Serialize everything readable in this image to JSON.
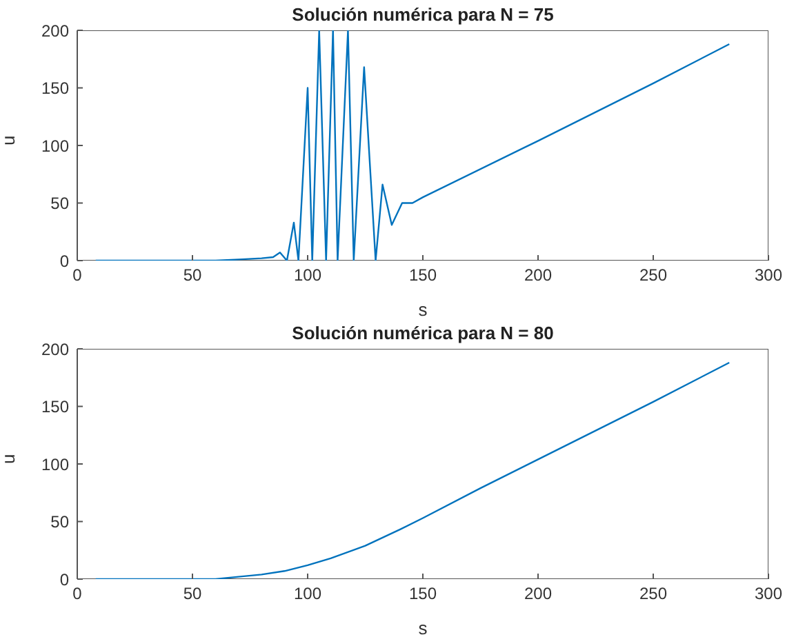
{
  "chart_data": [
    {
      "type": "line",
      "title": "Solución numérica para N = 75",
      "xlabel": "s",
      "ylabel": "u",
      "xlim": [
        0,
        300
      ],
      "ylim": [
        0,
        200
      ],
      "xticks": [
        0,
        50,
        100,
        150,
        200,
        250,
        300
      ],
      "yticks": [
        0,
        50,
        100,
        150,
        200
      ],
      "marker": "none",
      "line_style": "solid",
      "series": [
        {
          "color": "#0072bd",
          "x": [
            8,
            20,
            40,
            60,
            70,
            80,
            85,
            88,
            91,
            94,
            96,
            100,
            102,
            105,
            108,
            111,
            113,
            117.5,
            120,
            124.5,
            129.5,
            132.5,
            136.5,
            141,
            145.5,
            150,
            200,
            250,
            283
          ],
          "values": [
            0,
            0,
            0,
            0,
            1,
            2,
            3,
            7,
            0,
            33,
            0,
            150,
            0,
            200,
            0,
            200,
            0,
            200,
            0,
            168,
            0,
            66,
            31,
            50,
            50,
            55,
            104,
            154,
            188
          ]
        }
      ]
    },
    {
      "type": "line",
      "title": "Solución numérica para N = 80",
      "xlabel": "s",
      "ylabel": "u",
      "xlim": [
        0,
        300
      ],
      "ylim": [
        0,
        200
      ],
      "xticks": [
        0,
        50,
        100,
        150,
        200,
        250,
        300
      ],
      "yticks": [
        0,
        50,
        100,
        150,
        200
      ],
      "marker": "none",
      "line_style": "solid",
      "series": [
        {
          "color": "#0072bd",
          "x": [
            8,
            30,
            50,
            60,
            70,
            80,
            90,
            100,
            110,
            125,
            140,
            150,
            175,
            200,
            250,
            283
          ],
          "values": [
            0,
            0,
            0,
            0,
            2,
            4,
            7,
            12,
            18,
            29,
            43,
            53,
            79,
            104,
            154,
            188
          ]
        }
      ]
    }
  ]
}
